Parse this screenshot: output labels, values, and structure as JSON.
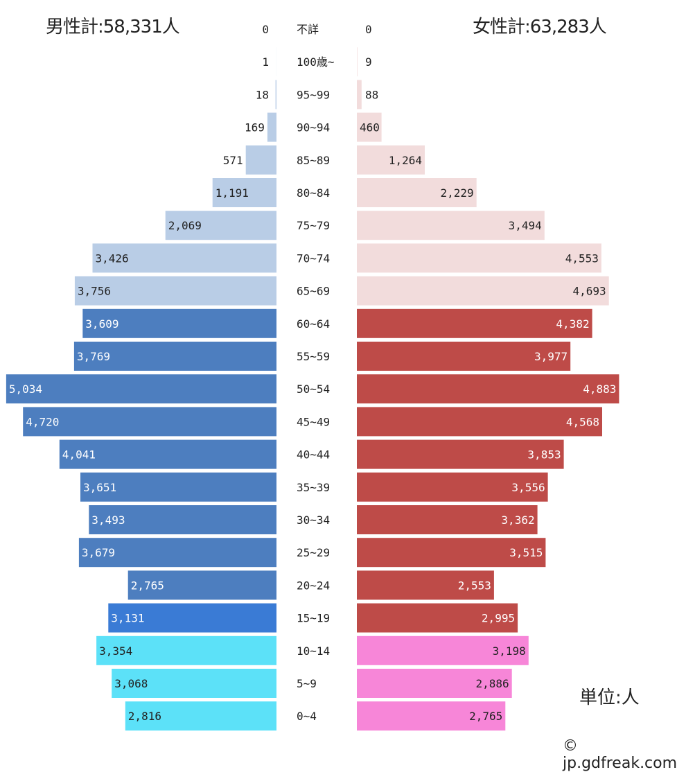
{
  "header": {
    "male_total": "男性計:58,331人",
    "female_total": "女性計:63,283人"
  },
  "footer": {
    "unit": "単位:人",
    "credit": "© jp.gdfreak.com"
  },
  "colors": {
    "male_young": "#5ce1f8",
    "male_15_19": "#3a7bd5",
    "male_working": "#4d7ebf",
    "male_elderly": "#b9cde6",
    "female_young": "#f786d8",
    "female_working": "#be4b48",
    "female_elderly": "#f2dcdc"
  },
  "chart_data": {
    "type": "bar",
    "orientation": "population-pyramid",
    "categories": [
      "不詳",
      "100歳~",
      "95~99",
      "90~94",
      "85~89",
      "80~84",
      "75~79",
      "70~74",
      "65~69",
      "60~64",
      "55~59",
      "50~54",
      "45~49",
      "40~44",
      "35~39",
      "30~34",
      "25~29",
      "20~24",
      "15~19",
      "10~14",
      "5~9",
      "0~4"
    ],
    "series": [
      {
        "values": [
          0,
          1,
          18,
          169,
          571,
          1191,
          2069,
          3426,
          3756,
          3609,
          3769,
          5034,
          4720,
          4041,
          3651,
          3493,
          3679,
          2765,
          3131,
          3354,
          3068,
          2816
        ],
        "labels": [
          "0",
          "1",
          "18",
          "169",
          "571",
          "1,191",
          "2,069",
          "3,426",
          "3,756",
          "3,609",
          "3,769",
          "5,034",
          "4,720",
          "4,041",
          "3,651",
          "3,493",
          "3,679",
          "2,765",
          "3,131",
          "3,354",
          "3,068",
          "2,816"
        ]
      },
      {
        "values": [
          0,
          9,
          88,
          460,
          1264,
          2229,
          3494,
          4553,
          4693,
          4382,
          3977,
          4883,
          4568,
          3853,
          3556,
          3362,
          3515,
          2553,
          2995,
          3198,
          2886,
          2765
        ],
        "labels": [
          "0",
          "9",
          "88",
          "460",
          "1,264",
          "2,229",
          "3,494",
          "4,553",
          "4,693",
          "4,382",
          "3,977",
          "4,883",
          "4,568",
          "3,853",
          "3,556",
          "3,362",
          "3,515",
          "2,553",
          "2,995",
          "3,198",
          "2,886",
          "2,765"
        ]
      }
    ]
  }
}
